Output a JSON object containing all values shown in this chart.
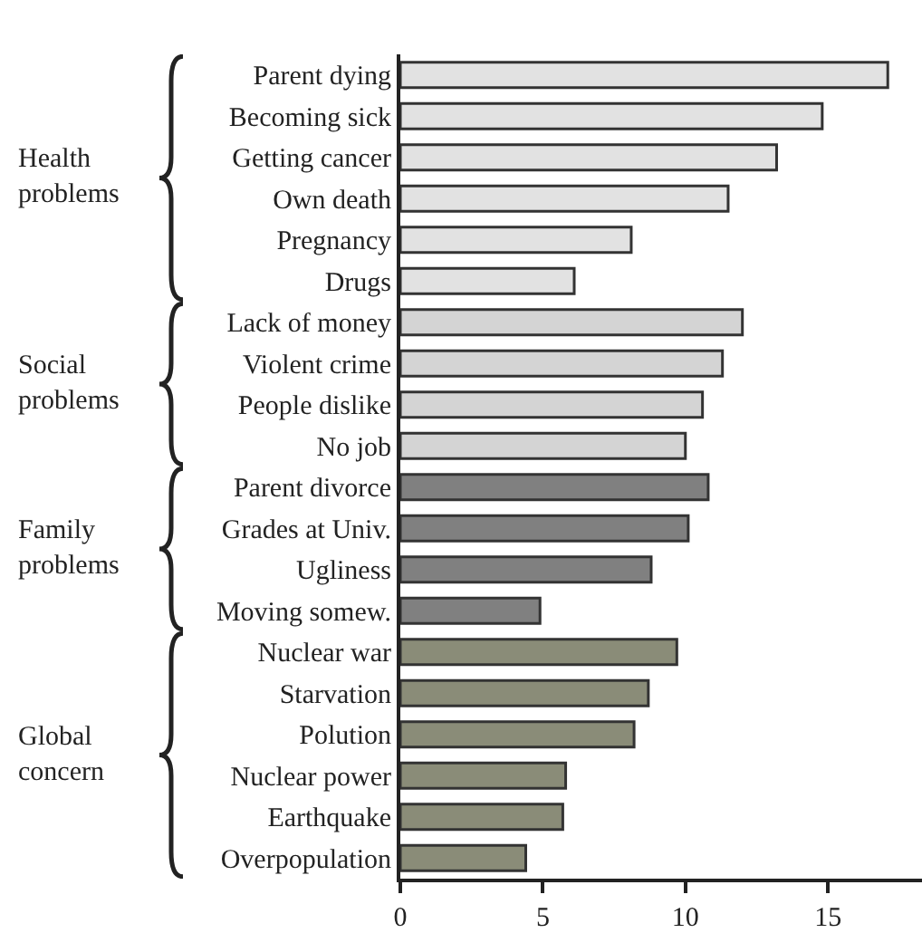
{
  "chart_data": {
    "type": "bar",
    "orientation": "horizontal",
    "categories": [
      "Parent dying",
      "Becoming sick",
      "Getting cancer",
      "Own death",
      "Pregnancy",
      "Drugs",
      "Lack of money",
      "Violent crime",
      "People dislike",
      "No job",
      "Parent divorce",
      "Grades at Univ.",
      "Ugliness",
      "Moving somew.",
      "Nuclear war",
      "Starvation",
      "Polution",
      "Nuclear power",
      "Earthquake",
      "Overpopulation"
    ],
    "values": [
      17.1,
      14.8,
      13.2,
      11.5,
      8.1,
      6.1,
      12.0,
      11.3,
      10.6,
      10.0,
      10.8,
      10.1,
      8.8,
      4.9,
      9.7,
      8.7,
      8.2,
      5.8,
      5.7,
      4.4
    ],
    "colors": [
      "#e2e2e2",
      "#e2e2e2",
      "#e2e2e2",
      "#e2e2e2",
      "#e2e2e2",
      "#e2e2e2",
      "#d4d4d4",
      "#d4d4d4",
      "#d4d4d4",
      "#d4d4d4",
      "#808080",
      "#808080",
      "#808080",
      "#808080",
      "#8a8c78",
      "#8a8c78",
      "#8a8c78",
      "#8a8c78",
      "#8a8c78",
      "#8a8c78"
    ],
    "annotations": [
      "Health problems",
      "Social problems",
      "Family problems",
      "Global concern"
    ],
    "xlim": [
      0,
      18.3
    ],
    "xticks": [
      0,
      5,
      10,
      15
    ]
  }
}
